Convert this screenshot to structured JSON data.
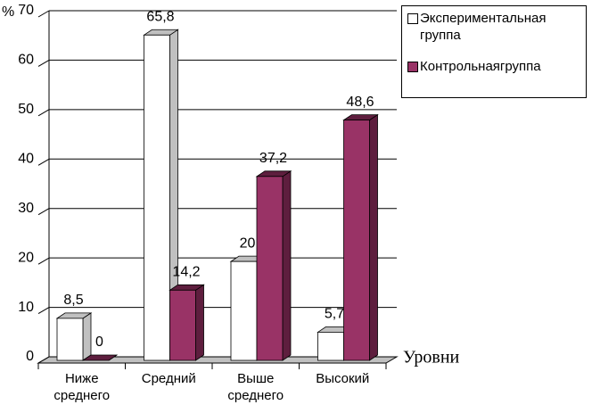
{
  "chart_data": {
    "type": "bar3d",
    "y_axis_label": "%",
    "x_axis_label": "Уровни",
    "categories": [
      "Ниже среднего",
      "Средний",
      "Выше среднего",
      "Высокий"
    ],
    "series": [
      {
        "name": "Экспериментальная группа",
        "color": "#ffffff",
        "side_color": "#c0c0c0",
        "values": [
          8.5,
          65.8,
          20,
          5.7
        ],
        "value_labels": [
          "8,5",
          "65,8",
          "20",
          "5,7"
        ]
      },
      {
        "name": "Контрольнаягруппа",
        "color": "#993366",
        "side_color": "#5e1e3e",
        "values": [
          0,
          14.2,
          37.2,
          48.6
        ],
        "value_labels": [
          "0",
          "14,2",
          "37,2",
          "48,6"
        ]
      }
    ],
    "ylim": [
      0,
      70
    ],
    "yticks": [
      0,
      10,
      20,
      30,
      40,
      50,
      60,
      70
    ],
    "grid": true
  }
}
